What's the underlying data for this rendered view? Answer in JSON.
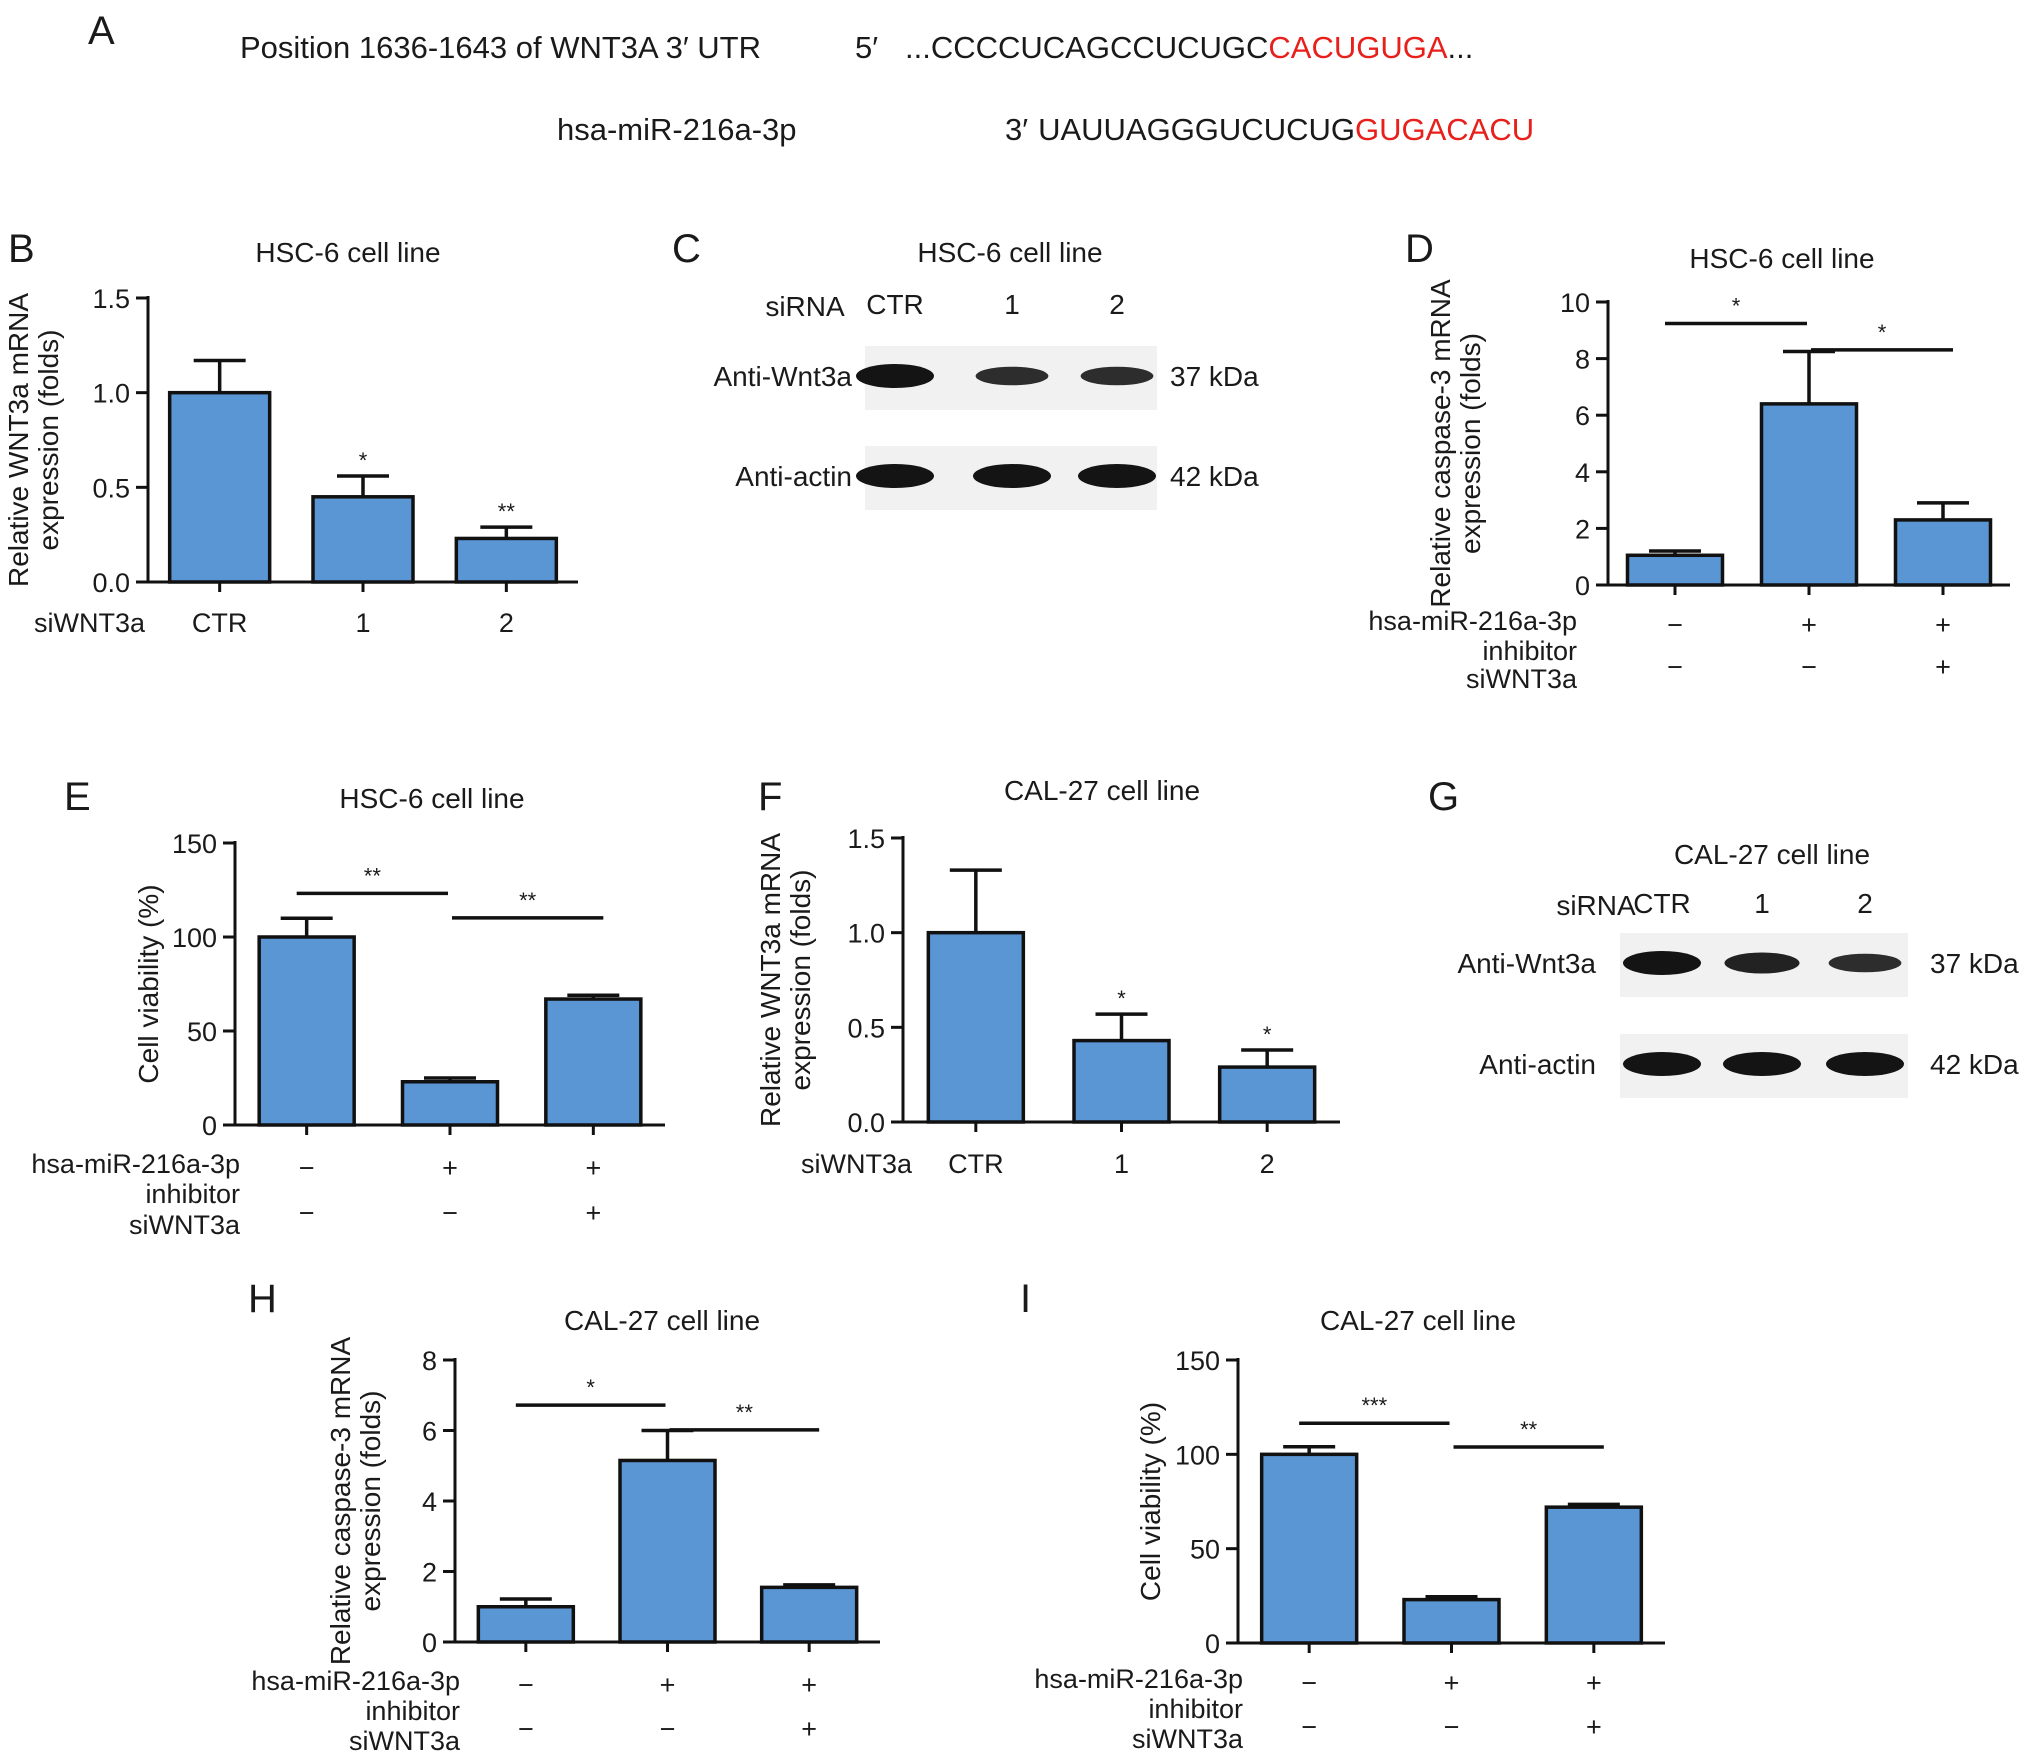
{
  "panel_letters": {
    "A": "A",
    "B": "B",
    "C": "C",
    "D": "D",
    "E": "E",
    "F": "F",
    "G": "G",
    "H": "H",
    "I": "I"
  },
  "sequence": {
    "wnt_label": "Position 1636-1643 of WNT3A 3′ UTR",
    "wnt_prefix": "5′",
    "wnt_black": "...CCCCUCAGCCUCUGC",
    "wnt_red": "CACUGUGA",
    "wnt_suffix": "...",
    "mir_label": "hsa-miR-216a-3p",
    "mir_prefix": "3′",
    "mir_black": "UAUUAGGGUCUCUG",
    "mir_red": "GUGACACU",
    "highlight_color": "#e8201c"
  },
  "colors": {
    "bar": "#5a95d4",
    "axis": "#111111",
    "band": "#141414"
  },
  "westerns": [
    {
      "id": "C",
      "title": "HSC-6 cell line",
      "sirna_label": "siRNA",
      "lanes": [
        "CTR",
        "1",
        "2"
      ],
      "rows": [
        {
          "label": "Anti-Wnt3a",
          "mw": "37 kDa",
          "intensity": [
            1.0,
            0.55,
            0.55
          ]
        },
        {
          "label": "Anti-actin",
          "mw": "42 kDa",
          "intensity": [
            1.0,
            1.0,
            1.0
          ]
        }
      ]
    },
    {
      "id": "G",
      "title": "CAL-27 cell line",
      "sirna_label": "siRNA",
      "lanes": [
        "CTR",
        "1",
        "2"
      ],
      "rows": [
        {
          "label": "Anti-Wnt3a",
          "mw": "37 kDa",
          "intensity": [
            1.0,
            0.75,
            0.55
          ]
        },
        {
          "label": "Anti-actin",
          "mw": "42 kDa",
          "intensity": [
            1.0,
            1.0,
            1.0
          ]
        }
      ]
    }
  ],
  "chart_data": [
    {
      "id": "B",
      "type": "bar",
      "title": "HSC-6 cell line",
      "ylabel": [
        "Relative WNT3a mRNA",
        "expression (folds)"
      ],
      "ylim": [
        0,
        1.5
      ],
      "yticks": [
        "0.0",
        "0.5",
        "1.0",
        "1.5"
      ],
      "row_labels": [
        "siWNT3a"
      ],
      "categories": [
        [
          "CTR"
        ],
        [
          "1"
        ],
        [
          "2"
        ]
      ],
      "values": [
        1.0,
        0.45,
        0.23
      ],
      "errors": [
        0.17,
        0.11,
        0.06
      ],
      "stars": [
        "",
        "*",
        "**"
      ],
      "brackets": []
    },
    {
      "id": "D",
      "type": "bar",
      "title": "HSC-6 cell line",
      "ylabel": [
        "Relative caspase-3 mRNA",
        "expression (folds)"
      ],
      "ylim": [
        0,
        10
      ],
      "yticks": [
        "0",
        "2",
        "4",
        "6",
        "8",
        "10"
      ],
      "row_labels": [
        "hsa-miR-216a-3p inhibitor",
        "siWNT3a"
      ],
      "categories": [
        [
          "−",
          "−"
        ],
        [
          "+",
          "−"
        ],
        [
          "+",
          "+"
        ]
      ],
      "values": [
        1.05,
        6.4,
        2.3
      ],
      "errors": [
        0.15,
        1.85,
        0.6
      ],
      "stars": [
        "",
        "",
        ""
      ],
      "brackets": [
        {
          "from": 0,
          "to": 1,
          "label": "*"
        },
        {
          "from": 1,
          "to": 2,
          "label": "*"
        }
      ]
    },
    {
      "id": "E",
      "type": "bar",
      "title": "HSC-6 cell line",
      "ylabel": [
        "Cell viability (%)"
      ],
      "ylim": [
        0,
        150
      ],
      "yticks": [
        "0",
        "50",
        "100",
        "150"
      ],
      "row_labels": [
        "hsa-miR-216a-3p inhibitor",
        "siWNT3a"
      ],
      "categories": [
        [
          "−",
          "−"
        ],
        [
          "+",
          "−"
        ],
        [
          "+",
          "+"
        ]
      ],
      "values": [
        100,
        23,
        67
      ],
      "errors": [
        10,
        2,
        2
      ],
      "stars": [
        "",
        "",
        ""
      ],
      "brackets": [
        {
          "from": 0,
          "to": 1,
          "label": "**"
        },
        {
          "from": 1,
          "to": 2,
          "label": "**"
        }
      ]
    },
    {
      "id": "F",
      "type": "bar",
      "title": "CAL-27 cell line",
      "ylabel": [
        "Relative WNT3a mRNA",
        "expression (folds)"
      ],
      "ylim": [
        0,
        1.5
      ],
      "yticks": [
        "0.0",
        "0.5",
        "1.0",
        "1.5"
      ],
      "row_labels": [
        "siWNT3a"
      ],
      "categories": [
        [
          "CTR"
        ],
        [
          "1"
        ],
        [
          "2"
        ]
      ],
      "values": [
        1.0,
        0.43,
        0.29
      ],
      "errors": [
        0.33,
        0.14,
        0.09
      ],
      "stars": [
        "",
        "*",
        "*"
      ],
      "brackets": []
    },
    {
      "id": "H",
      "type": "bar",
      "title": "CAL-27 cell line",
      "ylabel": [
        "Relative caspase-3 mRNA",
        "expression (folds)"
      ],
      "ylim": [
        0,
        8
      ],
      "yticks": [
        "0",
        "2",
        "4",
        "6",
        "8"
      ],
      "row_labels": [
        "hsa-miR-216a-3p inhibitor",
        "siWNT3a"
      ],
      "categories": [
        [
          "−",
          "−"
        ],
        [
          "+",
          "−"
        ],
        [
          "+",
          "+"
        ]
      ],
      "values": [
        1.0,
        5.15,
        1.55
      ],
      "errors": [
        0.22,
        0.85,
        0.07
      ],
      "stars": [
        "",
        "",
        ""
      ],
      "brackets": [
        {
          "from": 0,
          "to": 1,
          "label": "*"
        },
        {
          "from": 1,
          "to": 2,
          "label": "**"
        }
      ]
    },
    {
      "id": "I",
      "type": "bar",
      "title": "CAL-27 cell line",
      "ylabel": [
        "Cell viability (%)"
      ],
      "ylim": [
        0,
        150
      ],
      "yticks": [
        "0",
        "50",
        "100",
        "150"
      ],
      "row_labels": [
        "hsa-miR-216a-3p inhibitor",
        "siWNT3a"
      ],
      "categories": [
        [
          "−",
          "−"
        ],
        [
          "+",
          "−"
        ],
        [
          "+",
          "+"
        ]
      ],
      "values": [
        100,
        23,
        72
      ],
      "errors": [
        4,
        1.5,
        1.5
      ],
      "stars": [
        "",
        "",
        ""
      ],
      "brackets": [
        {
          "from": 0,
          "to": 1,
          "label": "***"
        },
        {
          "from": 1,
          "to": 2,
          "label": "**"
        }
      ]
    }
  ]
}
